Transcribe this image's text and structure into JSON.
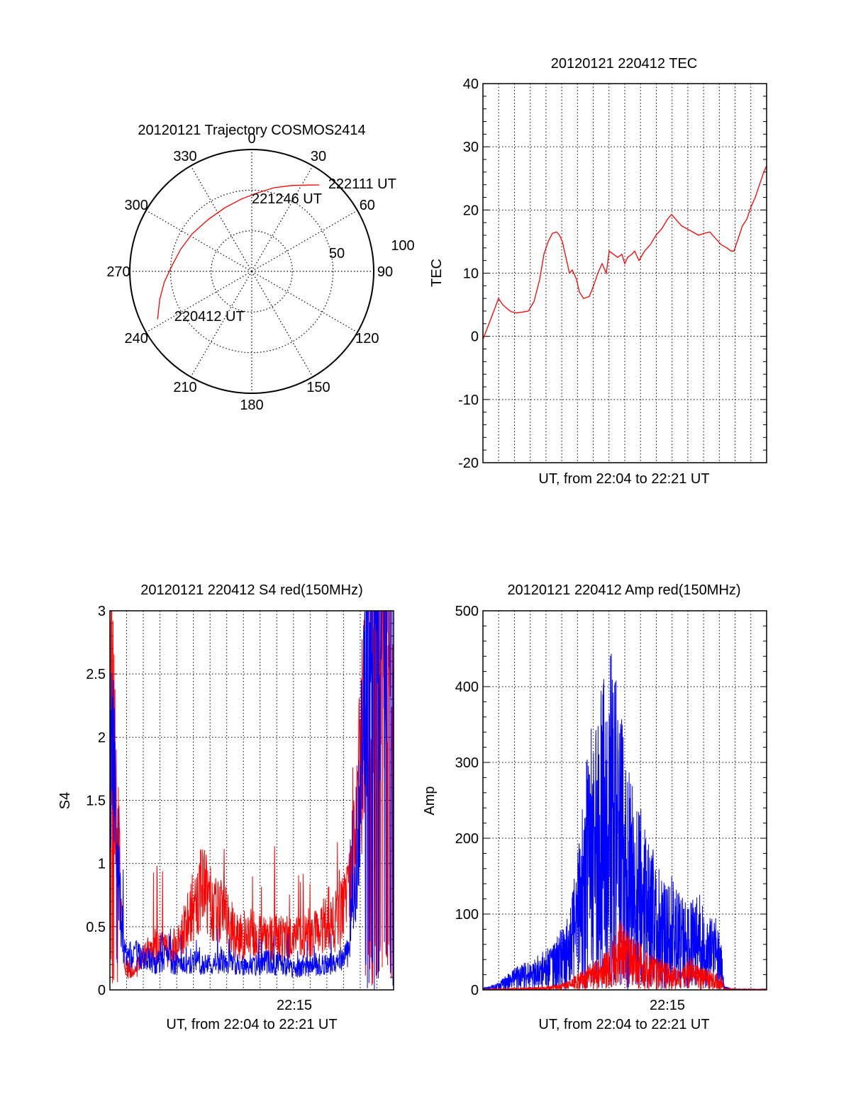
{
  "colors": {
    "red": "#ff0000",
    "blue": "#0000ff",
    "axis": "#000000",
    "grid": "#000000"
  },
  "chart_data": [
    {
      "type": "polar",
      "title": "20120121 Trajectory COSMOS2414",
      "angle_ticks": [
        "0",
        "30",
        "60",
        "90",
        "120",
        "150",
        "180",
        "210",
        "240",
        "270",
        "300",
        "330"
      ],
      "radial_ticks": [
        "50",
        "100"
      ],
      "grid": true,
      "series": [
        {
          "color": "red",
          "points": [
            {
              "azimuth": 243,
              "elevation": 12
            },
            {
              "azimuth": 253,
              "elevation": 19
            },
            {
              "azimuth": 263,
              "elevation": 25
            },
            {
              "azimuth": 274,
              "elevation": 31
            },
            {
              "azimuth": 287,
              "elevation": 35
            },
            {
              "azimuth": 302,
              "elevation": 38
            },
            {
              "azimuth": 320,
              "elevation": 40
            },
            {
              "azimuth": 337,
              "elevation": 39
            },
            {
              "azimuth": 352,
              "elevation": 36
            },
            {
              "azimuth": 4,
              "elevation": 32
            },
            {
              "azimuth": 15,
              "elevation": 26
            },
            {
              "azimuth": 25,
              "elevation": 20
            },
            {
              "azimuth": 33,
              "elevation": 14
            },
            {
              "azimuth": 38,
              "elevation": 9
            }
          ]
        }
      ],
      "annotations": [
        {
          "text": "222111 UT",
          "azimuth": 41,
          "elevation": 4
        },
        {
          "text": "221246 UT",
          "azimuth": 0,
          "elevation": 36
        },
        {
          "text": "220412 UT",
          "azimuth": 240,
          "elevation": 24
        }
      ]
    },
    {
      "type": "line",
      "title": "20120121 220412 TEC",
      "xlabel": "UT, from 22:04 to 22:21 UT",
      "ylabel": "TEC",
      "ylim": [
        -20,
        40
      ],
      "yticks": [
        "-20",
        "-10",
        "0",
        "10",
        "20",
        "30",
        "40"
      ],
      "grid": true,
      "series": [
        {
          "color": "red",
          "x": [
            0,
            0.03,
            0.055,
            0.07,
            0.09,
            0.1,
            0.12,
            0.16,
            0.18,
            0.2,
            0.215,
            0.23,
            0.245,
            0.26,
            0.27,
            0.28,
            0.29,
            0.305,
            0.315,
            0.33,
            0.34,
            0.355,
            0.375,
            0.39,
            0.405,
            0.42,
            0.435,
            0.445,
            0.46,
            0.475,
            0.49,
            0.5,
            0.51,
            0.525,
            0.535,
            0.55,
            0.57,
            0.59,
            0.61,
            0.63,
            0.65,
            0.665,
            0.68,
            0.7,
            0.72,
            0.74,
            0.76,
            0.78,
            0.8,
            0.82,
            0.84,
            0.86,
            0.875,
            0.885,
            0.9,
            0.915,
            0.93,
            0.945,
            0.96,
            0.975,
            0.99,
            1
          ],
          "y": [
            -0.5,
            3,
            6,
            5,
            4.2,
            3.9,
            3.7,
            4,
            5.5,
            9,
            13,
            15,
            16.3,
            16.5,
            16,
            15,
            13,
            10,
            10.5,
            9,
            7,
            6,
            6.3,
            8,
            10,
            11.5,
            10,
            13.5,
            13,
            12.5,
            13,
            11.5,
            12.5,
            13,
            13.5,
            12,
            13.5,
            14.5,
            16,
            17,
            18.5,
            19.3,
            18.5,
            17.5,
            17,
            16.5,
            16,
            16.3,
            16.5,
            15.5,
            14.5,
            14,
            13.5,
            13.5,
            15.5,
            17.5,
            18.5,
            20.5,
            22,
            24,
            26,
            27
          ]
        }
      ]
    },
    {
      "type": "line",
      "title": "20120121 220412 S4 red(150MHz)",
      "xlabel": "UT, from 22:04 to 22:21 UT",
      "ylabel": "S4",
      "ylim": [
        0,
        3
      ],
      "yticks": [
        "0",
        "0.5",
        "1",
        "1.5",
        "2",
        "2.5",
        "3"
      ],
      "xticks": [
        "22:15"
      ],
      "grid": true,
      "series": [
        {
          "color": "red",
          "x": [
            0,
            0.01,
            0.02,
            0.03,
            0.04,
            0.05,
            0.06,
            0.07,
            0.08,
            0.1,
            0.15,
            0.2,
            0.25,
            0.3,
            0.33,
            0.36,
            0.4,
            0.45,
            0.5,
            0.55,
            0.6,
            0.65,
            0.7,
            0.75,
            0.8,
            0.83,
            0.85,
            0.87,
            0.89,
            0.91,
            0.93,
            0.95,
            0.97,
            0.99,
            1
          ],
          "y": [
            3,
            2.2,
            1.6,
            1.2,
            0.55,
            0.25,
            0.17,
            0.15,
            0.14,
            0.18,
            0.35,
            0.3,
            0.4,
            0.7,
            0.8,
            0.65,
            0.6,
            0.42,
            0.45,
            0.4,
            0.42,
            0.4,
            0.46,
            0.5,
            0.55,
            0.65,
            0.85,
            1.3,
            2,
            2.6,
            3,
            3,
            3,
            3,
            3
          ]
        },
        {
          "color": "blue",
          "x": [
            0,
            0.01,
            0.02,
            0.03,
            0.04,
            0.05,
            0.06,
            0.08,
            0.1,
            0.15,
            0.2,
            0.25,
            0.3,
            0.35,
            0.4,
            0.45,
            0.5,
            0.55,
            0.6,
            0.65,
            0.7,
            0.75,
            0.8,
            0.84,
            0.86,
            0.88,
            0.9,
            0.92,
            0.94,
            0.96,
            0.98,
            1
          ],
          "y": [
            2.1,
            1.8,
            1.5,
            1.0,
            0.6,
            0.3,
            0.25,
            0.28,
            0.27,
            0.22,
            0.24,
            0.2,
            0.22,
            0.2,
            0.23,
            0.2,
            0.18,
            0.22,
            0.2,
            0.17,
            0.18,
            0.2,
            0.2,
            0.3,
            0.7,
            1.5,
            2.4,
            3,
            3,
            3,
            3,
            3
          ]
        }
      ]
    },
    {
      "type": "line",
      "title": "20120121 220412 Amp red(150MHz)",
      "xlabel": "UT, from 22:04 to 22:21 UT",
      "ylabel": "Amp",
      "ylim": [
        0,
        500
      ],
      "yticks": [
        "0",
        "100",
        "200",
        "300",
        "400",
        "500"
      ],
      "xticks": [
        "22:15"
      ],
      "grid": true,
      "series": [
        {
          "color": "blue",
          "x": [
            0,
            0.05,
            0.1,
            0.15,
            0.2,
            0.25,
            0.3,
            0.33,
            0.36,
            0.39,
            0.42,
            0.45,
            0.48,
            0.5,
            0.53,
            0.56,
            0.6,
            0.63,
            0.66,
            0.7,
            0.73,
            0.76,
            0.79,
            0.82,
            0.84,
            0.85,
            0.87,
            0.9,
            0.95,
            1
          ],
          "y": [
            2,
            8,
            25,
            35,
            45,
            60,
            95,
            160,
            280,
            360,
            390,
            430,
            380,
            300,
            260,
            230,
            180,
            140,
            150,
            120,
            110,
            125,
            90,
            95,
            60,
            5,
            2,
            1,
            1,
            1
          ]
        },
        {
          "color": "red",
          "x": [
            0,
            0.1,
            0.2,
            0.25,
            0.3,
            0.35,
            0.4,
            0.45,
            0.48,
            0.5,
            0.52,
            0.55,
            0.6,
            0.65,
            0.7,
            0.73,
            0.76,
            0.8,
            0.84,
            0.85,
            0.9,
            1
          ],
          "y": [
            1,
            2,
            4,
            6,
            12,
            25,
            40,
            55,
            95,
            80,
            70,
            60,
            45,
            35,
            25,
            45,
            30,
            25,
            20,
            2,
            1,
            1
          ]
        }
      ]
    }
  ]
}
